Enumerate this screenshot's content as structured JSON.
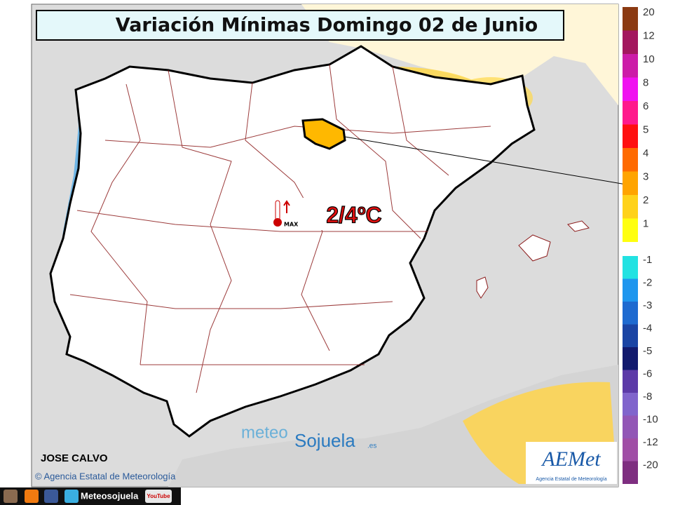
{
  "title": "Variación Mínimas Domingo 02 de Junio",
  "legend": {
    "items": [
      {
        "label": "20",
        "color": "#8b3a12"
      },
      {
        "label": "12",
        "color": "#a3175e"
      },
      {
        "label": "10",
        "color": "#cc1ca8"
      },
      {
        "label": "8",
        "color": "#f012f0"
      },
      {
        "label": "6",
        "color": "#ff1a8c"
      },
      {
        "label": "5",
        "color": "#ff1010"
      },
      {
        "label": "4",
        "color": "#ff6a00"
      },
      {
        "label": "3",
        "color": "#ffa400"
      },
      {
        "label": "2",
        "color": "#ffd21a"
      },
      {
        "label": "1",
        "color": "#ffff10"
      },
      {
        "label": "-1",
        "color": "#22e2e2"
      },
      {
        "label": "-2",
        "color": "#1e96ee"
      },
      {
        "label": "-3",
        "color": "#1e6ad0"
      },
      {
        "label": "-4",
        "color": "#1a44a4"
      },
      {
        "label": "-5",
        "color": "#121a6e"
      },
      {
        "label": "-6",
        "color": "#5c3aa8"
      },
      {
        "label": "-8",
        "color": "#8064cc"
      },
      {
        "label": "-10",
        "color": "#9256b6"
      },
      {
        "label": "-12",
        "color": "#a04ea6"
      },
      {
        "label": "-20",
        "color": "#7e2e80"
      }
    ]
  },
  "annotation": {
    "value": "2/4ºC",
    "icon_label": "MAX"
  },
  "watermark": {
    "part1": "meteo",
    "part2": "Sojuela",
    "suffix": ".es"
  },
  "author": "JOSE CALVO",
  "copyright": "© Agencia Estatal de Meteorología",
  "logo": {
    "name": "AEMet",
    "subtitle": "Agencia Estatal de Meteorología"
  },
  "footer": {
    "brand": "Meteosojuela",
    "youtube": "YouTube"
  }
}
